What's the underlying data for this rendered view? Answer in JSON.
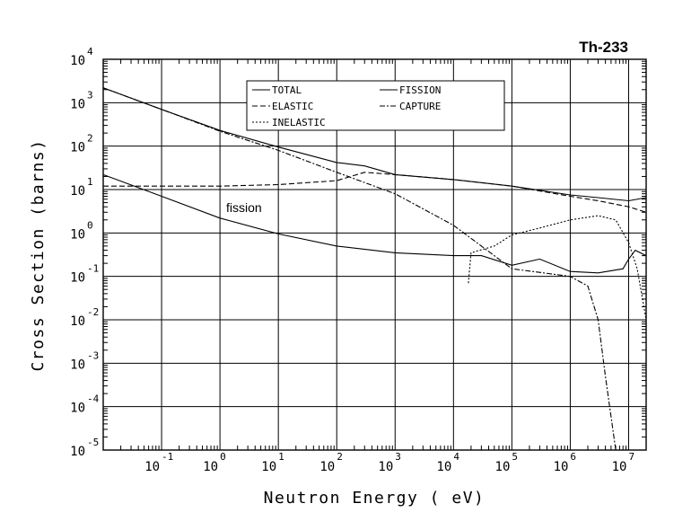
{
  "chart_data": {
    "type": "line",
    "title": "Th-233",
    "xlabel": "Neutron Energy ( eV)",
    "ylabel": "Cross Section (barns)",
    "xscale": "log",
    "yscale": "log",
    "xlim_exp": [
      -2.0,
      7.3
    ],
    "ylim_exp": [
      -5,
      4
    ],
    "x_tick_exponents": [
      "-1",
      "0",
      "1",
      "2",
      "3",
      "4",
      "5",
      "6",
      "7"
    ],
    "y_tick_exponents": [
      "-5",
      "-4",
      "-3",
      "-2",
      "-1",
      "0",
      "1",
      "2",
      "3",
      "4"
    ],
    "tick_base": "10",
    "grid": true,
    "legend_position": "top-center",
    "annotations": [
      {
        "text": "fission",
        "x": 0.35,
        "y": 3.0
      }
    ],
    "series": [
      {
        "name": "TOTAL",
        "style": "solid",
        "points": [
          [
            0.01,
            2200
          ],
          [
            0.1,
            700
          ],
          [
            1,
            230
          ],
          [
            10,
            95
          ],
          [
            100,
            42
          ],
          [
            300,
            35
          ],
          [
            1000,
            22
          ],
          [
            10000,
            17
          ],
          [
            100000,
            12
          ],
          [
            1000000,
            7.5
          ],
          [
            3000000,
            6.5
          ],
          [
            10000000,
            5.5
          ],
          [
            20000000,
            6.5
          ]
        ]
      },
      {
        "name": "ELASTIC",
        "style": "dashed",
        "points": [
          [
            0.01,
            12
          ],
          [
            1,
            12
          ],
          [
            10,
            13
          ],
          [
            100,
            16
          ],
          [
            300,
            25
          ],
          [
            1000,
            22
          ],
          [
            10000,
            17
          ],
          [
            100000,
            12
          ],
          [
            1000000,
            7
          ],
          [
            3000000,
            5.5
          ],
          [
            10000000,
            4
          ],
          [
            20000000,
            3
          ]
        ]
      },
      {
        "name": "INELASTIC",
        "style": "dotted",
        "points": [
          [
            18000,
            0.07
          ],
          [
            20000,
            0.35
          ],
          [
            50000,
            0.5
          ],
          [
            100000,
            0.9
          ],
          [
            300000,
            1.3
          ],
          [
            1000000,
            2.0
          ],
          [
            3000000,
            2.5
          ],
          [
            6000000,
            2.0
          ],
          [
            10000000,
            0.6
          ],
          [
            14000000,
            0.15
          ],
          [
            20000000,
            0.01
          ]
        ]
      },
      {
        "name": "FISSION",
        "style": "solid",
        "points": [
          [
            0.01,
            22
          ],
          [
            0.1,
            7
          ],
          [
            1,
            2.2
          ],
          [
            10,
            0.95
          ],
          [
            100,
            0.5
          ],
          [
            1000,
            0.35
          ],
          [
            10000,
            0.3
          ],
          [
            30000,
            0.3
          ],
          [
            100000,
            0.18
          ],
          [
            300000,
            0.25
          ],
          [
            1000000,
            0.13
          ],
          [
            3000000,
            0.12
          ],
          [
            8000000,
            0.15
          ],
          [
            10000000,
            0.25
          ],
          [
            13000000,
            0.4
          ],
          [
            20000000,
            0.3
          ]
        ]
      },
      {
        "name": "CAPTURE",
        "style": "dashdot",
        "points": [
          [
            0.01,
            2200
          ],
          [
            0.1,
            700
          ],
          [
            1,
            220
          ],
          [
            10,
            80
          ],
          [
            100,
            25
          ],
          [
            1000,
            8
          ],
          [
            10000,
            1.5
          ],
          [
            30000,
            0.5
          ],
          [
            100000,
            0.15
          ],
          [
            1000000,
            0.1
          ],
          [
            2000000,
            0.06
          ],
          [
            3000000,
            0.01
          ],
          [
            4000000,
            0.0005
          ],
          [
            6000000,
            1e-05
          ]
        ]
      }
    ]
  }
}
